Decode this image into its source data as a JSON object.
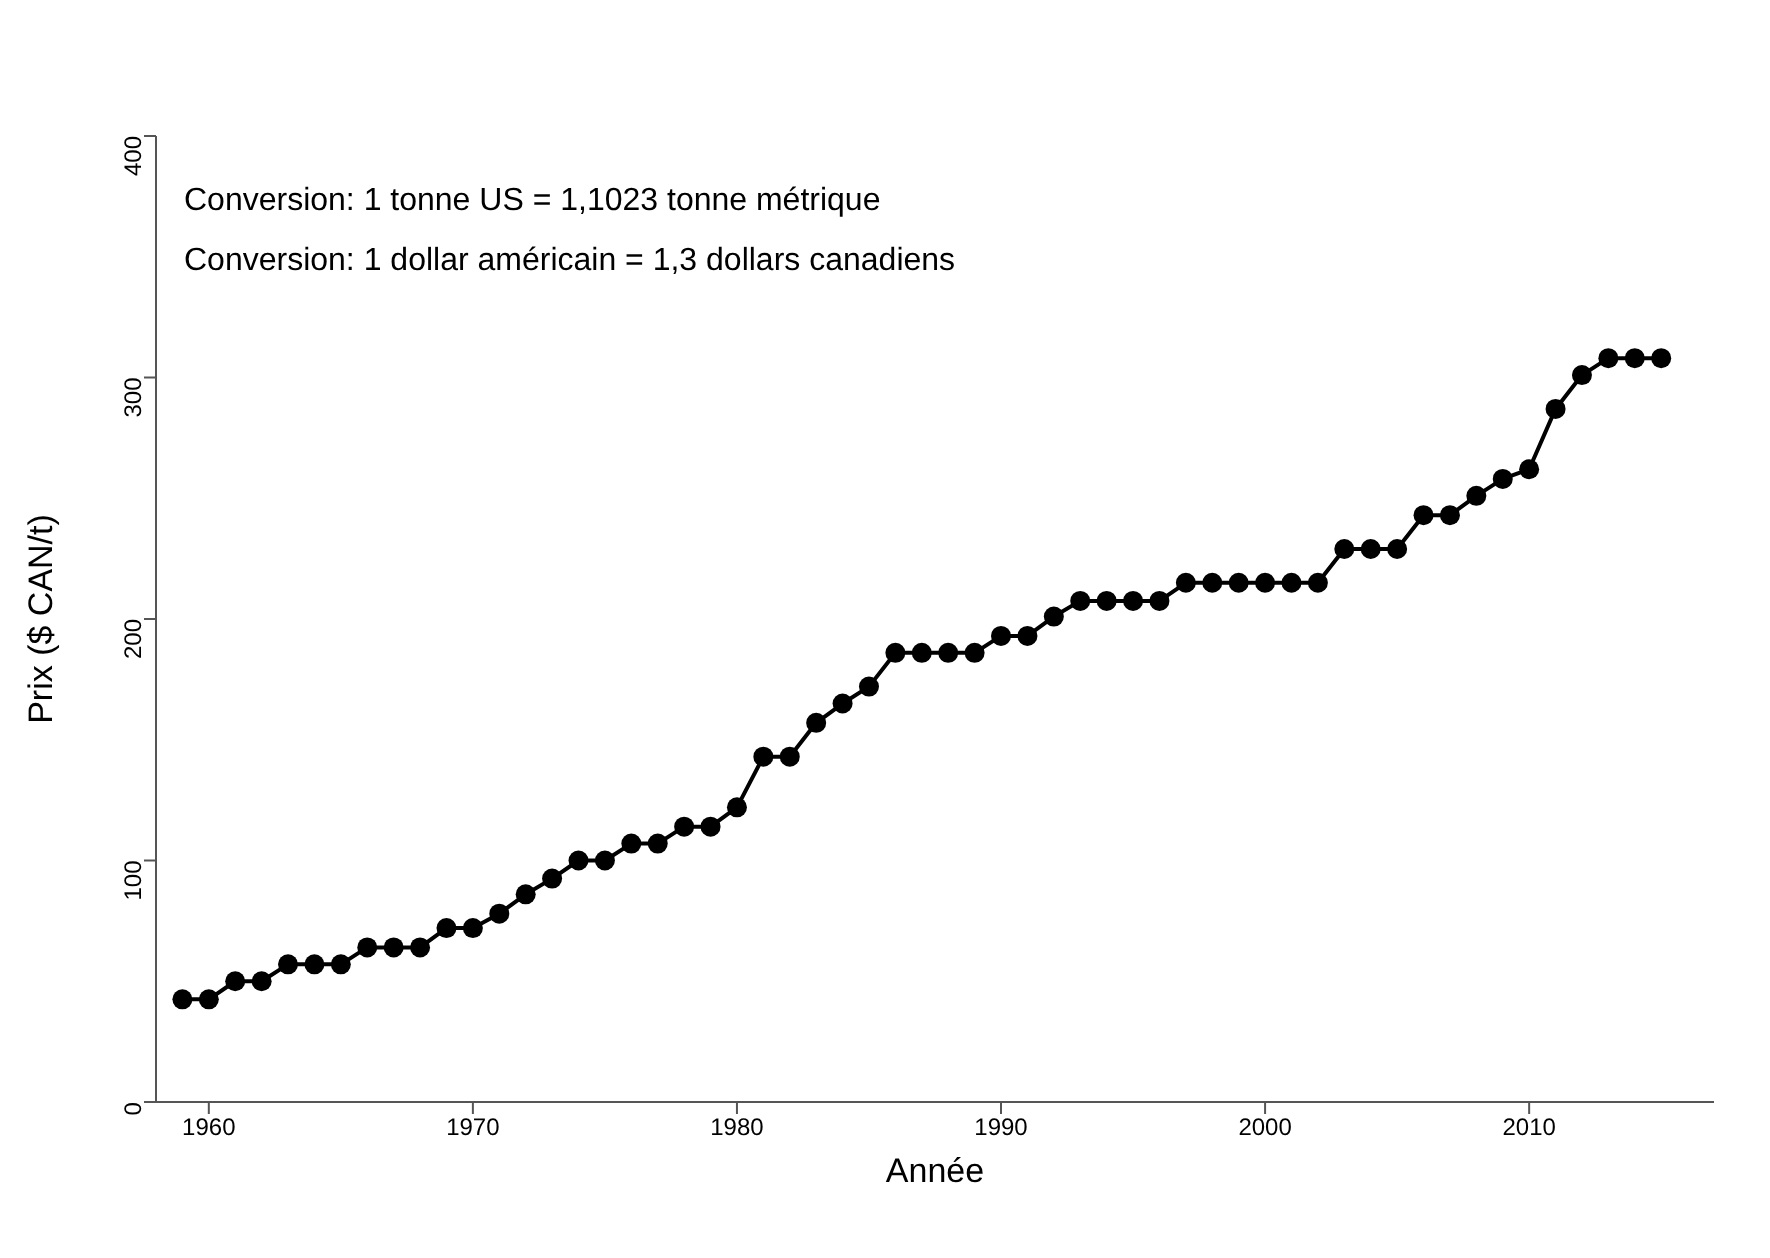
{
  "chart_data": {
    "type": "line",
    "xlabel": "Année",
    "ylabel": "Prix ($ CAN/t)",
    "annotations": [
      "Conversion: 1 tonne US = 1,1023 tonne métrique",
      "Conversion: 1 dollar américain = 1,3 dollars canadiens"
    ],
    "x": [
      1959,
      1960,
      1961,
      1962,
      1963,
      1964,
      1965,
      1966,
      1967,
      1968,
      1969,
      1970,
      1971,
      1972,
      1973,
      1974,
      1975,
      1976,
      1977,
      1978,
      1979,
      1980,
      1981,
      1982,
      1983,
      1984,
      1985,
      1986,
      1987,
      1988,
      1989,
      1990,
      1991,
      1992,
      1993,
      1994,
      1995,
      1996,
      1997,
      1998,
      1999,
      2000,
      2001,
      2002,
      2003,
      2004,
      2005,
      2006,
      2007,
      2008,
      2009,
      2010,
      2011,
      2012,
      2013,
      2014,
      2015
    ],
    "series": [
      {
        "color": "#000000",
        "values": [
          42.5,
          42.5,
          50,
          50,
          57,
          57,
          57,
          64,
          64,
          64,
          72,
          72,
          78,
          86,
          92.5,
          100,
          100,
          107,
          107,
          114,
          114,
          122,
          143,
          143,
          157,
          165,
          172,
          186,
          186,
          186,
          186,
          193,
          193,
          201,
          207.5,
          207.5,
          207.5,
          207.5,
          215,
          215,
          215,
          215,
          215,
          215,
          229,
          229,
          229,
          243,
          243,
          251,
          258,
          262,
          287,
          301,
          308,
          308,
          308
        ]
      }
    ],
    "xlim": [
      1958,
      2017
    ],
    "xticks": [
      1960,
      1970,
      1980,
      1990,
      2000,
      2010
    ],
    "ylim": [
      0,
      400
    ],
    "yticks": [
      0,
      100,
      200,
      300,
      400
    ],
    "grid": false,
    "legend": false,
    "marker": "circle",
    "line_style": "solid"
  }
}
